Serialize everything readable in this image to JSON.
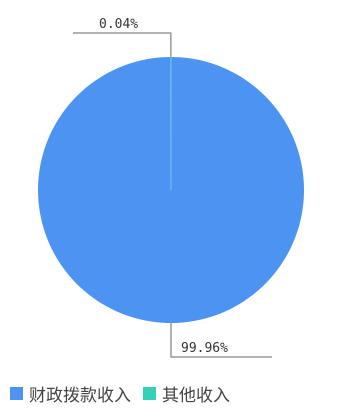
{
  "chart_data": {
    "type": "pie",
    "categories": [
      "财政拨款收入",
      "其他收入"
    ],
    "values": [
      99.96,
      0.04
    ],
    "data_labels": [
      "99.96%",
      "0.04%"
    ],
    "colors": [
      "#4d94f2",
      "#35d0b8"
    ],
    "legend": {
      "placement": "bottom-left",
      "entries": [
        "财政拨款收入",
        "其他收入"
      ]
    },
    "start_angle": "top",
    "direction": "clockwise"
  }
}
